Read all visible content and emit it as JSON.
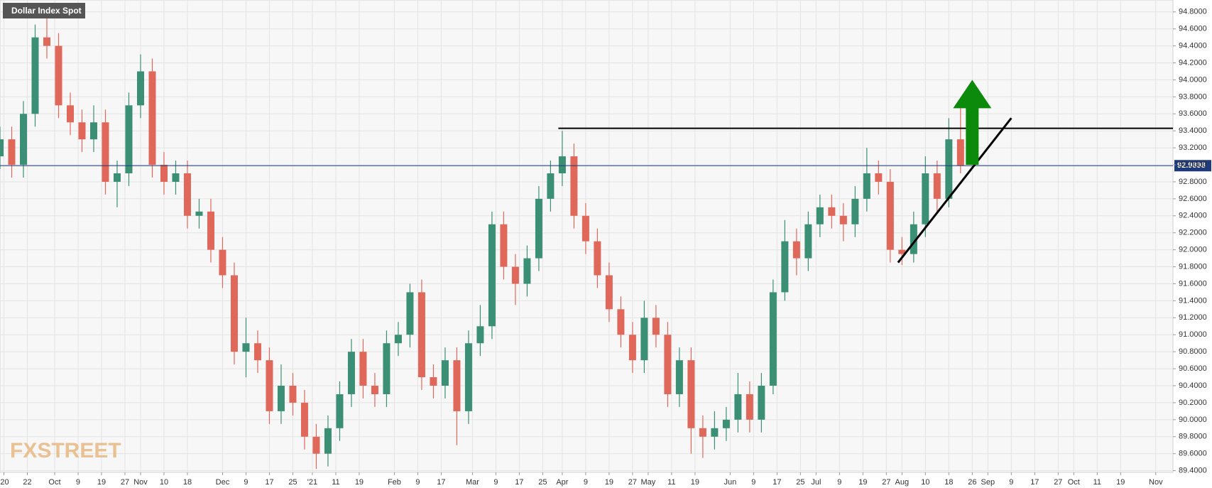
{
  "chart_data": {
    "type": "candlestick",
    "title": "Dollar Index Spot",
    "watermark": "FXSTREET",
    "x": [
      0,
      3,
      6,
      9,
      12,
      15,
      18,
      21,
      24,
      27,
      30,
      33,
      36,
      39,
      42,
      45,
      48,
      51,
      54,
      57,
      60,
      63,
      66,
      69,
      72,
      75,
      78,
      81,
      84,
      87,
      90,
      93,
      96,
      99,
      102,
      105,
      108,
      111,
      114,
      117,
      120,
      123,
      126,
      129,
      132,
      135,
      138,
      141,
      144,
      147,
      150,
      153,
      156,
      159,
      162,
      165,
      168,
      171,
      174,
      177,
      180,
      183,
      186,
      189,
      192,
      195,
      198,
      201,
      204,
      207,
      210,
      213,
      216,
      219,
      222,
      225,
      228,
      231,
      234,
      237,
      240,
      243,
      246
    ],
    "open": [
      93.1,
      93.3,
      93.0,
      93.6,
      94.5,
      94.4,
      93.7,
      93.5,
      93.3,
      93.5,
      92.8,
      92.9,
      93.7,
      94.1,
      93.0,
      92.8,
      92.9,
      92.4,
      92.45,
      92.0,
      91.7,
      90.8,
      90.9,
      90.7,
      90.1,
      90.4,
      90.2,
      89.8,
      89.6,
      89.9,
      90.3,
      90.8,
      90.4,
      90.3,
      90.9,
      91.0,
      91.5,
      90.5,
      90.4,
      90.7,
      90.1,
      90.9,
      91.1,
      92.3,
      91.8,
      91.6,
      91.9,
      92.6,
      92.9,
      93.1,
      92.4,
      92.1,
      91.7,
      91.3,
      91.0,
      90.7,
      91.2,
      91.0,
      90.3,
      90.7,
      89.9,
      89.8,
      89.9,
      90.0,
      90.3,
      90.0,
      90.4,
      91.5,
      92.1,
      91.9,
      92.3,
      92.5,
      92.4,
      92.3,
      92.6,
      92.9,
      92.8,
      92.0,
      91.95,
      92.3,
      92.9,
      92.6,
      93.3
    ],
    "high": [
      93.45,
      93.45,
      93.75,
      94.65,
      94.75,
      94.55,
      93.85,
      93.65,
      93.7,
      93.65,
      93.05,
      93.85,
      94.3,
      94.25,
      93.15,
      93.05,
      93.05,
      92.6,
      92.6,
      92.15,
      91.85,
      91.2,
      91.05,
      90.85,
      90.65,
      90.55,
      90.35,
      89.95,
      90.05,
      90.45,
      90.95,
      90.95,
      90.55,
      91.05,
      91.15,
      91.6,
      91.65,
      90.65,
      90.85,
      90.85,
      91.05,
      91.35,
      92.45,
      92.45,
      91.95,
      92.05,
      92.75,
      93.05,
      93.4,
      93.25,
      92.55,
      92.25,
      91.85,
      91.45,
      91.15,
      91.4,
      91.35,
      91.15,
      90.85,
      90.85,
      90.05,
      90.1,
      90.15,
      90.55,
      90.45,
      90.55,
      91.65,
      92.35,
      92.25,
      92.45,
      92.65,
      92.65,
      92.55,
      92.75,
      93.2,
      93.05,
      92.95,
      92.15,
      92.45,
      93.1,
      93.05,
      93.55,
      93.7
    ],
    "low": [
      92.95,
      92.85,
      92.85,
      93.45,
      94.25,
      93.55,
      93.35,
      93.15,
      93.15,
      92.65,
      92.5,
      92.75,
      93.55,
      92.85,
      92.65,
      92.65,
      92.25,
      92.25,
      91.85,
      91.55,
      90.65,
      90.5,
      90.55,
      89.95,
      89.95,
      90.05,
      89.65,
      89.42,
      89.45,
      89.75,
      90.15,
      90.25,
      90.15,
      90.15,
      90.75,
      90.85,
      90.35,
      90.25,
      90.25,
      89.7,
      89.95,
      90.75,
      90.95,
      91.65,
      91.35,
      91.45,
      91.75,
      92.45,
      92.75,
      92.25,
      91.95,
      91.55,
      91.15,
      90.85,
      90.55,
      90.55,
      90.85,
      90.15,
      90.15,
      89.6,
      89.55,
      89.65,
      89.75,
      89.85,
      89.85,
      89.85,
      90.3,
      91.4,
      91.7,
      91.75,
      92.15,
      92.25,
      92.1,
      92.15,
      92.45,
      92.65,
      91.85,
      91.82,
      91.85,
      92.15,
      92.45,
      92.5,
      92.9
    ],
    "close": [
      93.3,
      93.0,
      93.6,
      94.5,
      94.4,
      93.7,
      93.5,
      93.3,
      93.5,
      92.8,
      92.9,
      93.7,
      94.1,
      93.0,
      92.8,
      92.9,
      92.4,
      92.45,
      92.0,
      91.7,
      90.8,
      90.9,
      90.7,
      90.1,
      90.4,
      90.2,
      89.8,
      89.6,
      89.9,
      90.3,
      90.8,
      90.4,
      90.3,
      90.9,
      91.0,
      91.5,
      90.5,
      90.4,
      90.7,
      90.1,
      90.9,
      91.1,
      92.3,
      91.8,
      91.6,
      91.9,
      92.6,
      92.9,
      93.1,
      92.4,
      92.1,
      91.7,
      91.3,
      91.0,
      90.7,
      91.2,
      91.0,
      90.3,
      90.7,
      89.9,
      89.8,
      89.9,
      90.0,
      90.3,
      90.0,
      90.4,
      91.5,
      92.1,
      91.9,
      92.3,
      92.5,
      92.4,
      92.3,
      92.6,
      92.9,
      92.8,
      92.0,
      91.95,
      92.3,
      92.9,
      92.6,
      93.3,
      92.99
    ],
    "up_color": "#3b8f74",
    "down_color": "#e0685a",
    "xlim": [
      0,
      300.4
    ],
    "ylim": [
      89.38,
      94.94
    ],
    "grid": true,
    "xticks": [
      {
        "value": 1,
        "label": "'20"
      },
      {
        "value": 7,
        "label": "22"
      },
      {
        "value": 14,
        "label": "Oct"
      },
      {
        "value": 20,
        "label": "9"
      },
      {
        "value": 26,
        "label": "19"
      },
      {
        "value": 32,
        "label": "27"
      },
      {
        "value": 36,
        "label": "Nov"
      },
      {
        "value": 42,
        "label": "10"
      },
      {
        "value": 48,
        "label": "18"
      },
      {
        "value": 57,
        "label": "Dec"
      },
      {
        "value": 63,
        "label": "9"
      },
      {
        "value": 69,
        "label": "17"
      },
      {
        "value": 75,
        "label": "25"
      },
      {
        "value": 80,
        "label": "'21"
      },
      {
        "value": 86,
        "label": "11"
      },
      {
        "value": 92,
        "label": "19"
      },
      {
        "value": 101,
        "label": "Feb"
      },
      {
        "value": 107,
        "label": "9"
      },
      {
        "value": 113,
        "label": "17"
      },
      {
        "value": 121,
        "label": "Mar"
      },
      {
        "value": 127,
        "label": "9"
      },
      {
        "value": 133,
        "label": "17"
      },
      {
        "value": 139,
        "label": "25"
      },
      {
        "value": 144,
        "label": "Apr"
      },
      {
        "value": 150,
        "label": "9"
      },
      {
        "value": 156,
        "label": "19"
      },
      {
        "value": 162,
        "label": "27"
      },
      {
        "value": 166,
        "label": "May"
      },
      {
        "value": 172,
        "label": "11"
      },
      {
        "value": 178,
        "label": "19"
      },
      {
        "value": 187,
        "label": "Jun"
      },
      {
        "value": 193,
        "label": "9"
      },
      {
        "value": 199,
        "label": "17"
      },
      {
        "value": 205,
        "label": "25"
      },
      {
        "value": 209,
        "label": "Jul"
      },
      {
        "value": 215,
        "label": "9"
      },
      {
        "value": 221,
        "label": "19"
      },
      {
        "value": 227,
        "label": "27"
      },
      {
        "value": 231,
        "label": "Aug"
      },
      {
        "value": 237,
        "label": "10"
      },
      {
        "value": 243,
        "label": "18"
      },
      {
        "value": 249,
        "label": "26"
      },
      {
        "value": 253,
        "label": "Sep"
      },
      {
        "value": 259,
        "label": "9"
      },
      {
        "value": 265,
        "label": "17"
      },
      {
        "value": 271,
        "label": "27"
      },
      {
        "value": 275,
        "label": "Oct"
      },
      {
        "value": 281,
        "label": "11"
      },
      {
        "value": 287,
        "label": "19"
      },
      {
        "value": 296,
        "label": "Nov"
      }
    ],
    "yticks": [
      {
        "value": 89.4,
        "label": "89.4000"
      },
      {
        "value": 89.6,
        "label": "89.6000"
      },
      {
        "value": 89.8,
        "label": "89.8000"
      },
      {
        "value": 90.0,
        "label": "90.0000"
      },
      {
        "value": 90.2,
        "label": "90.2000"
      },
      {
        "value": 90.4,
        "label": "90.4000"
      },
      {
        "value": 90.6,
        "label": "90.6000"
      },
      {
        "value": 90.8,
        "label": "90.8000"
      },
      {
        "value": 91.0,
        "label": "91.0000"
      },
      {
        "value": 91.2,
        "label": "91.2000"
      },
      {
        "value": 91.4,
        "label": "91.4000"
      },
      {
        "value": 91.6,
        "label": "91.6000"
      },
      {
        "value": 91.8,
        "label": "91.8000"
      },
      {
        "value": 92.0,
        "label": "92.0000"
      },
      {
        "value": 92.2,
        "label": "92.2000"
      },
      {
        "value": 92.4,
        "label": "92.4000"
      },
      {
        "value": 92.6,
        "label": "92.6000"
      },
      {
        "value": 92.8,
        "label": "92.8000"
      },
      {
        "value": 93.0,
        "label": "93.0000"
      },
      {
        "value": 93.2,
        "label": "93.2000"
      },
      {
        "value": 93.4,
        "label": "93.4000"
      },
      {
        "value": 93.6,
        "label": "93.6000"
      },
      {
        "value": 93.8,
        "label": "93.8000"
      },
      {
        "value": 94.0,
        "label": "94.0000"
      },
      {
        "value": 94.2,
        "label": "94.2000"
      },
      {
        "value": 94.4,
        "label": "94.4000"
      },
      {
        "value": 94.6,
        "label": "94.6000"
      },
      {
        "value": 94.8,
        "label": "94.8000"
      }
    ],
    "last_price": {
      "value": 92.9898,
      "label": "92.9898",
      "color": "#1f3a7a"
    },
    "resistance": {
      "value": 93.43,
      "x_start": 143
    },
    "trendline": {
      "x": [
        230,
        259
      ],
      "y": [
        91.85,
        93.55
      ]
    },
    "arrow": {
      "x": 249,
      "from": 93.0,
      "to": 94.0,
      "color": "#0b8a0b"
    }
  }
}
